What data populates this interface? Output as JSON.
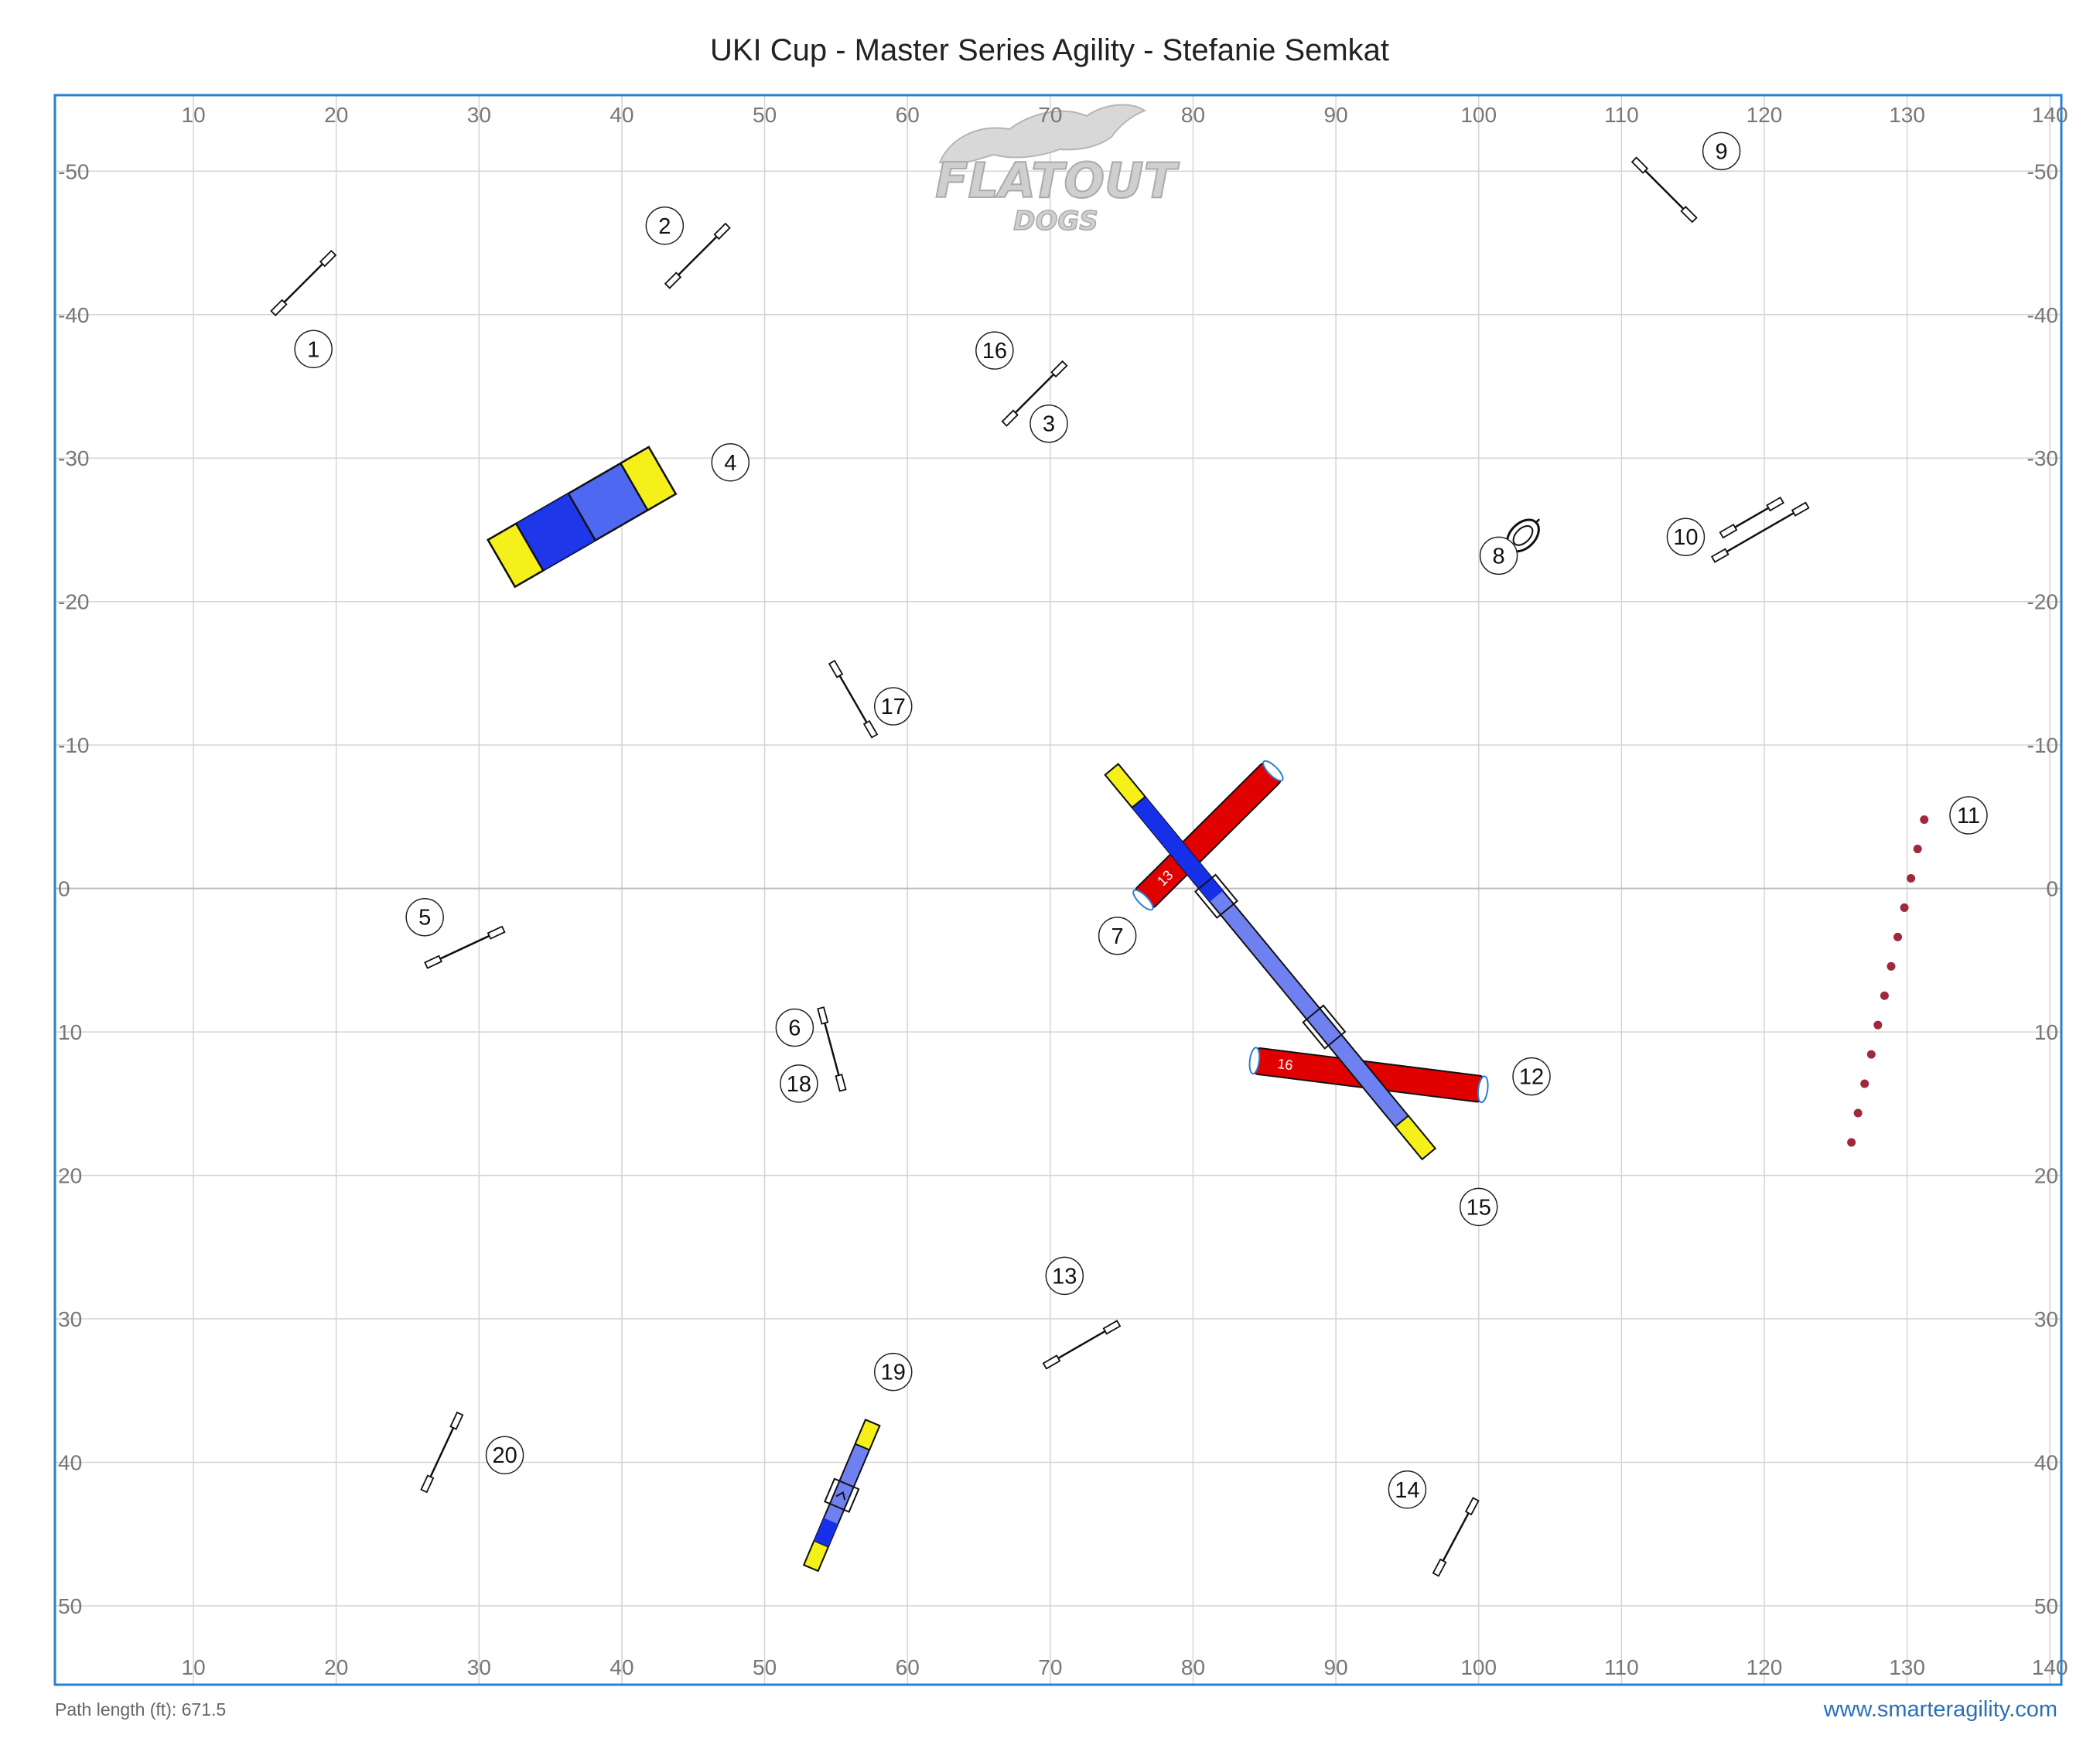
{
  "title": "UKI Cup - Master Series Agility - Stefanie Semkat",
  "footer": {
    "path_length": "Path length (ft): 671.5",
    "website": "www.smarteragility.com"
  },
  "logo": {
    "line1": "FLATOUT",
    "line2": "DOGS"
  },
  "axes": {
    "x_ticks": [
      10,
      20,
      30,
      40,
      50,
      60,
      70,
      80,
      90,
      100,
      110,
      120,
      130,
      140
    ],
    "y_ticks": [
      -50,
      -40,
      -30,
      -20,
      -10,
      0,
      10,
      20,
      30,
      40,
      50
    ],
    "x_range": [
      0.3,
      140.8
    ],
    "y_range": [
      -55.3,
      55.5
    ]
  },
  "colors": {
    "frame": "#2a7fd4",
    "grid": "#d4d4d4",
    "tunnel": "#e00000",
    "contact_blue": "#1530e8",
    "contact_yellow": "#f5f01a",
    "weave": "#a0283c"
  },
  "obstacles": [
    {
      "type": "jump",
      "x": 17.7,
      "y": -42.2,
      "angle": -45
    },
    {
      "type": "jump",
      "x": 45.3,
      "y": -44.1,
      "angle": -45
    },
    {
      "type": "jump",
      "x": 68.9,
      "y": -34.5,
      "angle": -45
    },
    {
      "type": "dogwalk_end",
      "x": 37.2,
      "y": -25.9,
      "angle": -30
    },
    {
      "type": "jump",
      "x": 29.0,
      "y": 4.1,
      "angle": -25
    },
    {
      "type": "jump",
      "x": 54.7,
      "y": 11.2,
      "angle": 75
    },
    {
      "type": "tire",
      "x": 103.1,
      "y": -24.6,
      "angle": -45
    },
    {
      "type": "jump",
      "x": 113.0,
      "y": -48.7,
      "angle": 45
    },
    {
      "type": "double_jump",
      "x": 119.5,
      "y": -25.2,
      "angle": -30
    },
    {
      "type": "weave",
      "x1": 131.2,
      "y1": -4.8,
      "x2": 126.1,
      "y2": 17.7,
      "count": 12
    },
    {
      "type": "jump",
      "x": 72.2,
      "y": 31.8,
      "angle": -30
    },
    {
      "type": "jump",
      "x": 98.4,
      "y": 45.2,
      "angle": -62
    },
    {
      "type": "jump",
      "x": 56.2,
      "y": -13.2,
      "angle": 60
    },
    {
      "type": "jump",
      "x": 27.4,
      "y": 39.3,
      "angle": -65
    },
    {
      "type": "seesaw",
      "x": 55.4,
      "y": 42.3,
      "angle": -67
    },
    {
      "type": "tunnel",
      "x1": 76.5,
      "y1": 0.8,
      "x2": 85.6,
      "y2": -8.2,
      "label": "13"
    },
    {
      "type": "tunnel",
      "x1": 84.3,
      "y1": 12.0,
      "x2": 100.3,
      "y2": 14.0,
      "label": "16"
    },
    {
      "type": "dogwalk",
      "x1": 74.3,
      "y1": -8.3,
      "x2": 96.5,
      "y2": 18.5
    }
  ],
  "numbers": [
    {
      "label": "1",
      "x": 18.4,
      "y": -37.6
    },
    {
      "label": "2",
      "x": 43.0,
      "y": -46.2
    },
    {
      "label": "3",
      "x": 69.9,
      "y": -32.4
    },
    {
      "label": "4",
      "x": 47.6,
      "y": -29.7
    },
    {
      "label": "5",
      "x": 26.2,
      "y": 2.0
    },
    {
      "label": "6",
      "x": 52.1,
      "y": 9.7
    },
    {
      "label": "7",
      "x": 74.7,
      "y": 3.3
    },
    {
      "label": "8",
      "x": 101.4,
      "y": -23.2
    },
    {
      "label": "9",
      "x": 117.0,
      "y": -51.4
    },
    {
      "label": "10",
      "x": 114.5,
      "y": -24.5
    },
    {
      "label": "11",
      "x": 134.3,
      "y": -5.1
    },
    {
      "label": "12",
      "x": 103.7,
      "y": 13.1
    },
    {
      "label": "13",
      "x": 71.0,
      "y": 27.0
    },
    {
      "label": "14",
      "x": 95.0,
      "y": 41.9
    },
    {
      "label": "15",
      "x": 100.0,
      "y": 22.2
    },
    {
      "label": "16",
      "x": 66.1,
      "y": -37.5
    },
    {
      "label": "17",
      "x": 59.0,
      "y": -12.7
    },
    {
      "label": "18",
      "x": 52.4,
      "y": 13.6
    },
    {
      "label": "19",
      "x": 59.0,
      "y": 33.7
    },
    {
      "label": "20",
      "x": 31.8,
      "y": 39.5
    }
  ]
}
